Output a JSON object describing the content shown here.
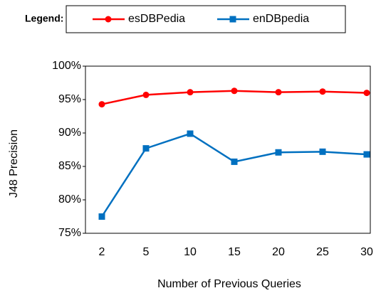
{
  "chart_data": {
    "type": "line",
    "legend_title": "Legend:",
    "xlabel": "Number of Previous Queries",
    "ylabel": "J48 Precision",
    "categories": [
      "2",
      "5",
      "10",
      "15",
      "20",
      "25",
      "30"
    ],
    "series": [
      {
        "name": "esDBPedia",
        "color": "#ff0000",
        "marker": "circle",
        "values": [
          94.3,
          95.7,
          96.1,
          96.3,
          96.1,
          96.2,
          96.0
        ]
      },
      {
        "name": "enDBpedia",
        "color": "#0070c0",
        "marker": "square",
        "values": [
          77.5,
          87.7,
          89.9,
          85.7,
          87.1,
          87.2,
          86.8
        ]
      }
    ],
    "ylim": [
      75,
      100
    ],
    "yticks": [
      {
        "value": 75,
        "label": "75%"
      },
      {
        "value": 80,
        "label": "80%"
      },
      {
        "value": 85,
        "label": "85%"
      },
      {
        "value": 90,
        "label": "90%"
      },
      {
        "value": 95,
        "label": "95%"
      },
      {
        "value": 100,
        "label": "100%"
      }
    ],
    "grid": false,
    "legend": "top"
  }
}
